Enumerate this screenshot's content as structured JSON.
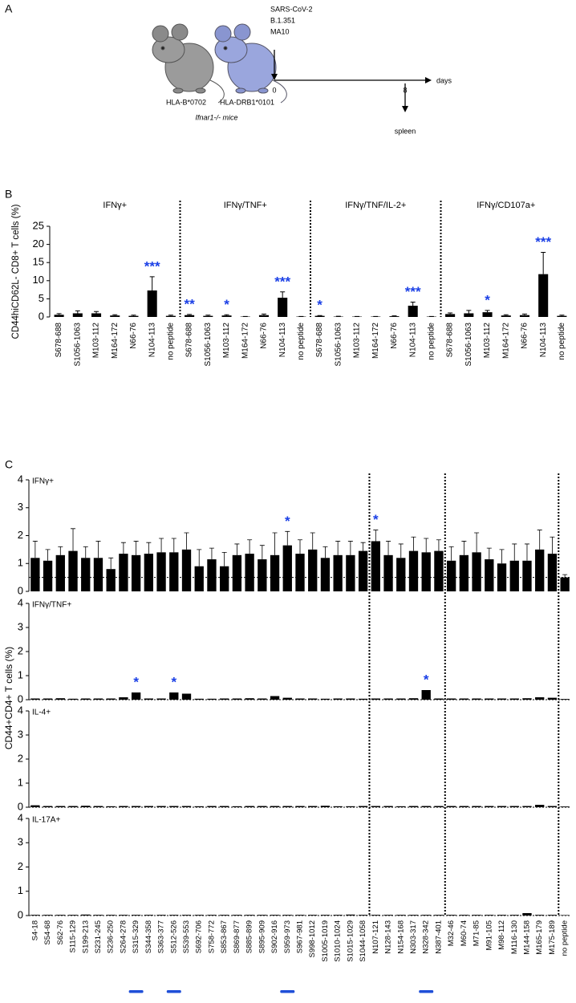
{
  "diagram": {
    "label": "A",
    "mouse_1": "HLA-B*0702",
    "mouse_2": "HLA-DRB1*0101",
    "mice": "Ifnar1-/- mice",
    "virus": [
      "SARS-CoV-2",
      "B.1.351",
      "MA10"
    ],
    "day_start": "0",
    "day_end": "8",
    "axis_label": "days",
    "endpoint": "spleen"
  },
  "chart_data": [
    {
      "type": "bar",
      "panel": "B",
      "ylabel": "CD44hiCD62L- CD8+ T cells (%)",
      "color": "#000000",
      "sig_color": "#1a3fe6",
      "ylim": [
        0,
        25
      ],
      "yticks": [
        0,
        5,
        10,
        15,
        20,
        25
      ],
      "categories": [
        "S678-688",
        "S1056-1063",
        "M103-112",
        "M164-172",
        "N66-76",
        "N104-113",
        "no peptide"
      ],
      "groups": [
        {
          "title": "IFNγ+",
          "values": [
            0.6,
            1.0,
            1.0,
            0.4,
            0.3,
            7.3,
            0.3
          ],
          "errors": [
            0.3,
            0.7,
            0.5,
            0.2,
            0.2,
            3.8,
            0.2
          ],
          "significance": [
            null,
            null,
            null,
            null,
            null,
            "***",
            null
          ]
        },
        {
          "title": "IFNγ/TNF+",
          "values": [
            0.5,
            0.3,
            0.4,
            0.1,
            0.5,
            5.3,
            0.1
          ],
          "errors": [
            0.2,
            0.2,
            0.2,
            0.05,
            0.3,
            1.6,
            0.05
          ],
          "significance": [
            "**",
            null,
            "*",
            null,
            null,
            "***",
            null
          ]
        },
        {
          "title": "IFNγ/TNF/IL-2+",
          "values": [
            0.3,
            0.1,
            0.1,
            0.1,
            0.2,
            3.1,
            0.1
          ],
          "errors": [
            0.1,
            0.1,
            0.05,
            0.05,
            0.1,
            1.0,
            0.05
          ],
          "significance": [
            "*",
            null,
            null,
            null,
            null,
            "***",
            null
          ]
        },
        {
          "title": "IFNγ/CD107a+",
          "values": [
            0.8,
            1.0,
            1.3,
            0.4,
            0.5,
            11.8,
            0.3
          ],
          "errors": [
            0.3,
            0.8,
            0.5,
            0.2,
            0.3,
            6.0,
            0.2
          ],
          "significance": [
            null,
            null,
            "*",
            null,
            null,
            "***",
            null
          ]
        }
      ]
    },
    {
      "type": "bar",
      "panel": "C",
      "ylabel": "CD44+CD4+ T cells (%)",
      "color": "#000000",
      "sig_color": "#1a3fe6",
      "highlight_color": "#1f4fd8",
      "ylim": [
        0,
        4
      ],
      "yticks": [
        0,
        1,
        2,
        3,
        4
      ],
      "categories": [
        "S4-18",
        "S54-68",
        "S62-76",
        "S115-129",
        "S199-213",
        "S231-245",
        "S236-250",
        "S264-278",
        "S315-329",
        "S344-358",
        "S363-377",
        "S512-526",
        "S539-553",
        "S692-706",
        "S758-772",
        "S853-867",
        "S869-877",
        "S885-899",
        "S895-909",
        "S902-916",
        "S959-973",
        "S967-981",
        "S998-1012",
        "S1005-1019",
        "S1010-1024",
        "S1015-1029",
        "S1044-1058",
        "N107-121",
        "N128-143",
        "N154-168",
        "N303-317",
        "N328-342",
        "N387-401",
        "M32-46",
        "M60-74",
        "M71-85",
        "M91-105",
        "M98-112",
        "M116-130",
        "M144-158",
        "M165-179",
        "M175-189",
        "no peptide"
      ],
      "highlight": [
        8,
        11,
        20,
        31
      ],
      "panels": [
        {
          "title": "IFNγ+",
          "threshold": 0.5,
          "values": [
            1.2,
            1.1,
            1.3,
            1.45,
            1.2,
            1.2,
            0.8,
            1.35,
            1.3,
            1.35,
            1.4,
            1.4,
            1.5,
            0.9,
            1.15,
            0.9,
            1.3,
            1.35,
            1.15,
            1.3,
            1.65,
            1.35,
            1.5,
            1.2,
            1.3,
            1.3,
            1.45,
            1.8,
            1.3,
            1.2,
            1.45,
            1.4,
            1.45,
            1.1,
            1.3,
            1.4,
            1.15,
            1.0,
            1.1,
            1.1,
            1.5,
            1.35,
            0.5
          ],
          "errors": [
            0.6,
            0.4,
            0.3,
            0.8,
            0.4,
            0.6,
            0.4,
            0.4,
            0.5,
            0.4,
            0.5,
            0.5,
            0.6,
            0.6,
            0.4,
            0.5,
            0.4,
            0.5,
            0.5,
            0.8,
            0.5,
            0.5,
            0.6,
            0.4,
            0.5,
            0.5,
            0.3,
            0.4,
            0.5,
            0.5,
            0.5,
            0.5,
            0.4,
            0.5,
            0.5,
            0.7,
            0.4,
            0.5,
            0.6,
            0.6,
            0.7,
            0.6,
            0.1
          ],
          "significance": [
            null,
            null,
            null,
            null,
            null,
            null,
            null,
            null,
            null,
            null,
            null,
            null,
            null,
            null,
            null,
            null,
            null,
            null,
            null,
            null,
            "*",
            null,
            null,
            null,
            null,
            null,
            null,
            "*",
            null,
            null,
            null,
            null,
            null,
            null,
            null,
            null,
            null,
            null,
            null,
            null,
            null,
            null,
            null
          ]
        },
        {
          "title": "IFNγ/TNF+",
          "threshold": 0,
          "values": [
            0.05,
            0.05,
            0.06,
            0.04,
            0.05,
            0.05,
            0.05,
            0.1,
            0.3,
            0.05,
            0.05,
            0.3,
            0.25,
            0.04,
            0.04,
            0.05,
            0.05,
            0.06,
            0.05,
            0.15,
            0.08,
            0.05,
            0.05,
            0.04,
            0.05,
            0.05,
            0.04,
            0.05,
            0.05,
            0.05,
            0.06,
            0.4,
            0.05,
            0.05,
            0.05,
            0.05,
            0.05,
            0.05,
            0.05,
            0.06,
            0.1,
            0.08,
            0.03
          ],
          "significance": [
            null,
            null,
            null,
            null,
            null,
            null,
            null,
            null,
            "*",
            null,
            null,
            "*",
            null,
            null,
            null,
            null,
            null,
            null,
            null,
            null,
            null,
            null,
            null,
            null,
            null,
            null,
            null,
            null,
            null,
            null,
            null,
            "*",
            null,
            null,
            null,
            null,
            null,
            null,
            null,
            null,
            null,
            null,
            null
          ]
        },
        {
          "title": "IL-4+",
          "threshold": 0,
          "values": [
            0.08,
            0.05,
            0.05,
            0.05,
            0.06,
            0.05,
            0.04,
            0.05,
            0.05,
            0.05,
            0.05,
            0.05,
            0.05,
            0.04,
            0.05,
            0.05,
            0.04,
            0.05,
            0.05,
            0.05,
            0.05,
            0.05,
            0.05,
            0.06,
            0.04,
            0.04,
            0.05,
            0.05,
            0.05,
            0.04,
            0.05,
            0.05,
            0.05,
            0.05,
            0.05,
            0.05,
            0.05,
            0.05,
            0.05,
            0.05,
            0.1,
            0.05,
            0.03
          ]
        },
        {
          "title": "IL-17A+",
          "threshold": 0,
          "values": [
            0.03,
            0.03,
            0.03,
            0.03,
            0.04,
            0.03,
            0.03,
            0.03,
            0.03,
            0.03,
            0.03,
            0.03,
            0.03,
            0.03,
            0.03,
            0.03,
            0.03,
            0.03,
            0.03,
            0.03,
            0.03,
            0.03,
            0.03,
            0.03,
            0.03,
            0.04,
            0.03,
            0.03,
            0.03,
            0.03,
            0.03,
            0.03,
            0.03,
            0.03,
            0.03,
            0.03,
            0.03,
            0.03,
            0.03,
            0.1,
            0.03,
            0.03,
            0.02
          ]
        }
      ]
    }
  ]
}
